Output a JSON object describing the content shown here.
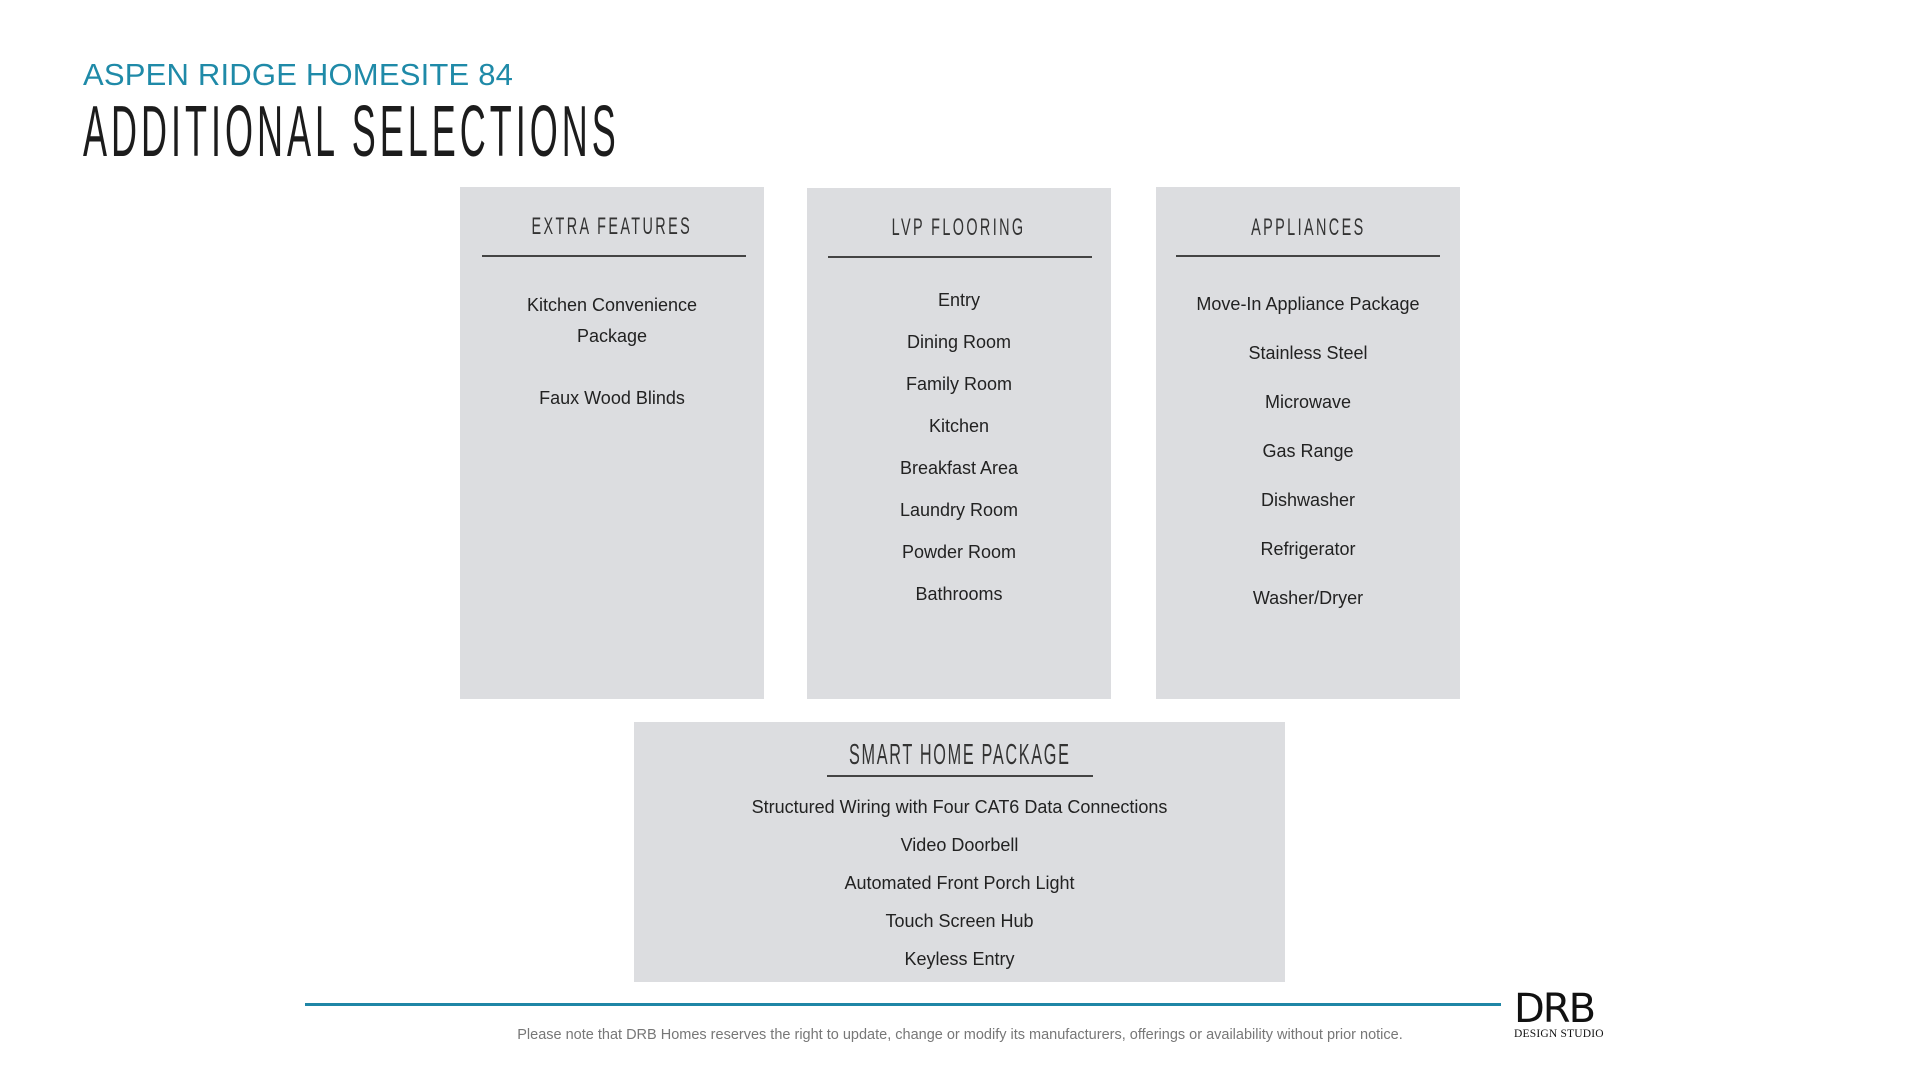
{
  "header": {
    "subtitle": "ASPEN RIDGE HOMESITE 84",
    "title": "ADDITIONAL SELECTIONS"
  },
  "sections": [
    {
      "title": "EXTRA FEATURES",
      "items": [
        "Kitchen Convenience",
        "Package",
        "Faux Wood Blinds"
      ]
    },
    {
      "title": "LVP FLOORING",
      "items": [
        "Entry",
        "Dining Room",
        "Family Room",
        "Kitchen",
        "Breakfast Area",
        "Laundry Room",
        "Powder Room",
        "Bathrooms"
      ]
    },
    {
      "title": "APPLIANCES",
      "items": [
        "Move-In Appliance Package",
        "Stainless Steel",
        "Microwave",
        "Gas Range",
        "Dishwasher",
        "Refrigerator",
        "Washer/Dryer"
      ]
    }
  ],
  "smart_home": {
    "title": "SMART HOME PACKAGE",
    "items": [
      "Structured Wiring with Four CAT6 Data Connections",
      "Video Doorbell",
      "Automated Front Porch Light",
      "Touch Screen Hub",
      "Keyless Entry"
    ]
  },
  "footer": {
    "note": "Please note that DRB Homes reserves the right to update, change or modify its manufacturers, offerings or availability without prior notice.",
    "logo_text": "DRB",
    "logo_subtext": "DESIGN STUDIO"
  },
  "colors": {
    "accent": "#1f8aa8",
    "panel": "#dcdde0"
  }
}
